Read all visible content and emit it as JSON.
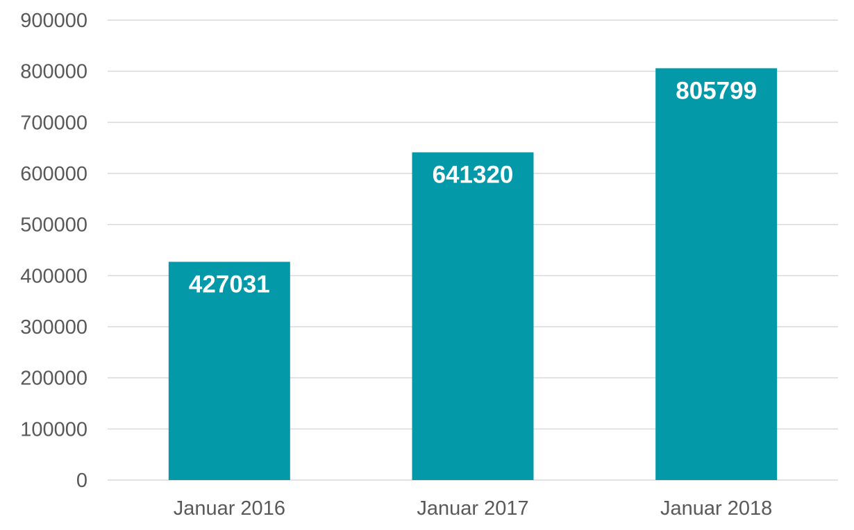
{
  "chart_data": {
    "type": "bar",
    "title": "",
    "xlabel": "",
    "ylabel": "",
    "categories": [
      "Januar 2016",
      "Januar 2017",
      "Januar 2018"
    ],
    "values": [
      427031,
      641320,
      805799
    ],
    "data_labels": [
      "427031",
      "641320",
      "805799"
    ],
    "ylim": [
      0,
      900000
    ],
    "yticks": [
      0,
      100000,
      200000,
      300000,
      400000,
      500000,
      600000,
      700000,
      800000,
      900000
    ],
    "ytick_labels": [
      "0",
      "100000",
      "200000",
      "300000",
      "400000",
      "500000",
      "600000",
      "700000",
      "800000",
      "900000"
    ],
    "grid": true,
    "legend": "none",
    "bar_color": "#0399a8"
  }
}
